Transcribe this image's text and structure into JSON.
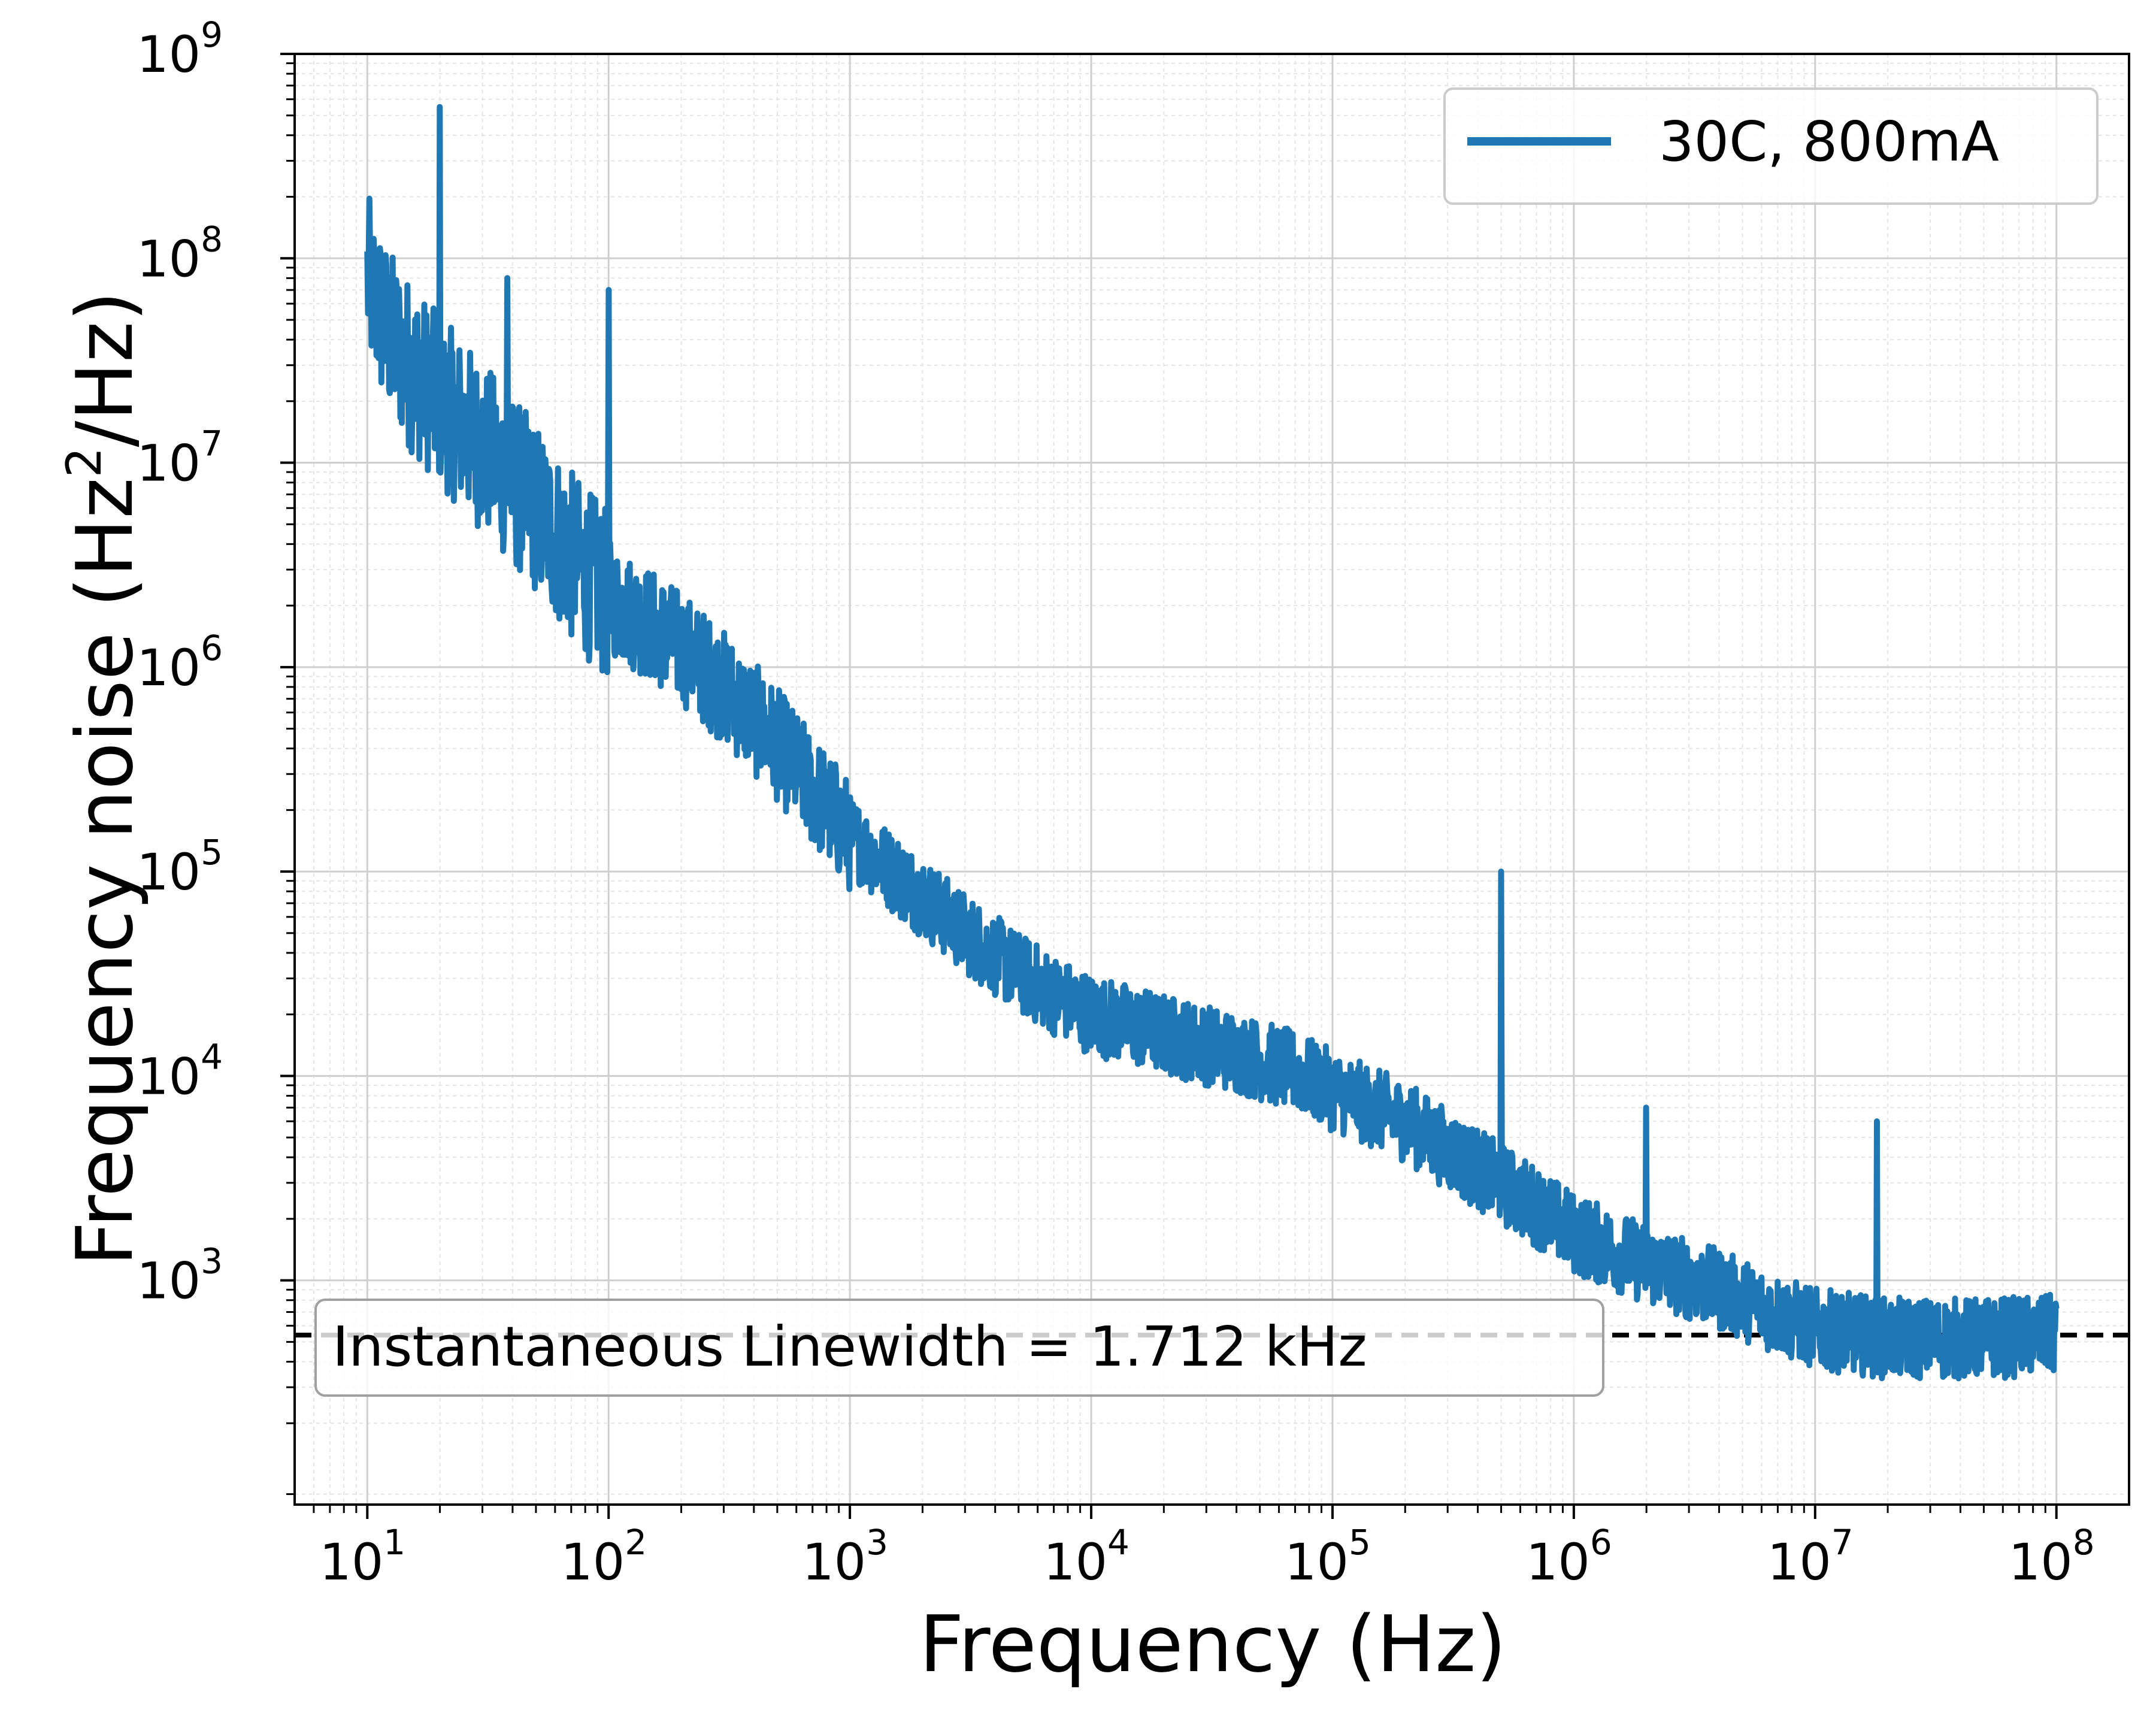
{
  "chart_data": {
    "type": "line",
    "xlabel": "Frequency (Hz)",
    "ylabel_main": "Frequency noise (Hz",
    "ylabel_sup": "2",
    "ylabel_tail": "/Hz)",
    "xscale": "log",
    "yscale": "log",
    "xlim": [
      5,
      200000000
    ],
    "ylim": [
      80,
      1000000000
    ],
    "x_ticks": [
      {
        "base": "10",
        "exp": "1",
        "value": 10
      },
      {
        "base": "10",
        "exp": "2",
        "value": 100
      },
      {
        "base": "10",
        "exp": "3",
        "value": 1000
      },
      {
        "base": "10",
        "exp": "4",
        "value": 10000
      },
      {
        "base": "10",
        "exp": "5",
        "value": 100000
      },
      {
        "base": "10",
        "exp": "6",
        "value": 1000000
      },
      {
        "base": "10",
        "exp": "7",
        "value": 10000000
      },
      {
        "base": "10",
        "exp": "8",
        "value": 100000000
      }
    ],
    "y_ticks": [
      {
        "base": "10",
        "exp": "3",
        "value": 1000
      },
      {
        "base": "10",
        "exp": "4",
        "value": 10000
      },
      {
        "base": "10",
        "exp": "5",
        "value": 100000
      },
      {
        "base": "10",
        "exp": "6",
        "value": 1000000
      },
      {
        "base": "10",
        "exp": "7",
        "value": 10000000
      },
      {
        "base": "10",
        "exp": "8",
        "value": 100000000
      },
      {
        "base": "10",
        "exp": "9",
        "value": 1000000000
      }
    ],
    "grid": true,
    "legend_position": "top-right",
    "series": [
      {
        "name": "30C, 800mA",
        "color": "#1f77b4",
        "noise_floor_points": [
          [
            10,
            80000000
          ],
          [
            12,
            45000000
          ],
          [
            15,
            30000000
          ],
          [
            20,
            20000000
          ],
          [
            30,
            12000000
          ],
          [
            50,
            6000000
          ],
          [
            70,
            3500000
          ],
          [
            100,
            2200000
          ],
          [
            150,
            1600000
          ],
          [
            200,
            1250000
          ],
          [
            300,
            800000
          ],
          [
            500,
            420000
          ],
          [
            700,
            250000
          ],
          [
            1000,
            150000
          ],
          [
            1500,
            100000
          ],
          [
            2000,
            75000
          ],
          [
            3000,
            50000
          ],
          [
            5000,
            32000
          ],
          [
            7000,
            25000
          ],
          [
            10000,
            20000
          ],
          [
            20000,
            16000
          ],
          [
            40000,
            13000
          ],
          [
            70000,
            10500
          ],
          [
            100000,
            8500
          ],
          [
            200000,
            6000
          ],
          [
            400000,
            3500
          ],
          [
            700000,
            2300
          ],
          [
            1000000,
            1700
          ],
          [
            2000000,
            1200
          ],
          [
            4000000,
            900
          ],
          [
            7000000,
            680
          ],
          [
            10000000,
            580
          ],
          [
            20000000,
            520
          ],
          [
            50000000,
            520
          ],
          [
            100000000,
            540
          ]
        ],
        "spikes": [
          {
            "x": 20,
            "y": 550000000
          },
          {
            "x": 10.5,
            "y": 100000000
          },
          {
            "x": 38,
            "y": 80000000
          },
          {
            "x": 100,
            "y": 70000000
          },
          {
            "x": 500000,
            "y": 100000
          },
          {
            "x": 2000000,
            "y": 7000
          },
          {
            "x": 18000000,
            "y": 6000
          }
        ]
      }
    ],
    "reference_line": {
      "y": 540,
      "style": "dashed",
      "color": "#000000"
    },
    "annotation": "Instantaneous Linewidth = 1.712 kHz"
  }
}
